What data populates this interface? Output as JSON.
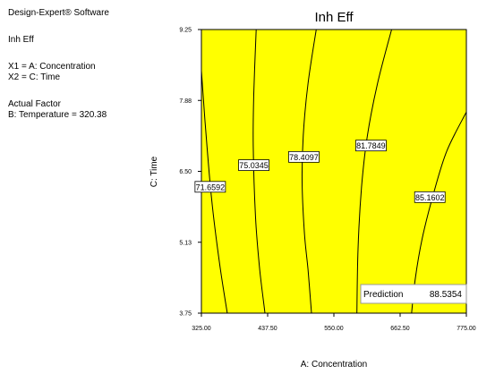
{
  "software": {
    "title": "Design-Expert® Software",
    "response": "Inh Eff",
    "factor_x1": "X1 = A: Concentration",
    "factor_x2": "X2 = C: Time",
    "actual_factor_heading": "Actual Factor",
    "actual_factor_value": "B: Temperature = 320.38"
  },
  "colors": {
    "plot_fill": "#ffff00",
    "contour": "#000000"
  },
  "chart_data": {
    "type": "contour",
    "title": "Inh Eff",
    "xlabel": "A: Concentration",
    "ylabel": "C: Time",
    "xlim": [
      325,
      775
    ],
    "ylim": [
      3.75,
      9.25
    ],
    "x_tick_labels": [
      "325.00",
      "437.50",
      "550.00",
      "662.50",
      "775.00"
    ],
    "y_tick_labels": [
      "3.75",
      "5.13",
      "6.50",
      "7.88",
      "9.25"
    ],
    "contours": [
      {
        "level": "71.6592",
        "points": [
          [
            325,
            8.45
          ],
          [
            331,
            7.5
          ],
          [
            342,
            6.0
          ],
          [
            356,
            4.7
          ],
          [
            369,
            3.75
          ]
        ],
        "label_at": [
          340,
          6.2
        ]
      },
      {
        "level": "75.0345",
        "points": [
          [
            418,
            9.25
          ],
          [
            414,
            8.0
          ],
          [
            413,
            7.0
          ],
          [
            417,
            5.6
          ],
          [
            424,
            4.6
          ],
          [
            433,
            3.75
          ]
        ],
        "label_at": [
          414,
          6.62
        ]
      },
      {
        "level": "78.4097",
        "points": [
          [
            520,
            9.25
          ],
          [
            506,
            8.2
          ],
          [
            498,
            7.2
          ],
          [
            496,
            6.3
          ],
          [
            500,
            5.3
          ],
          [
            506,
            4.6
          ],
          [
            512,
            3.75
          ]
        ],
        "label_at": [
          499,
          6.78
        ]
      },
      {
        "level": "81.7849",
        "points": [
          [
            648,
            9.25
          ],
          [
            624,
            8.2
          ],
          [
            607,
            7.2
          ],
          [
            597,
            6.2
          ],
          [
            591,
            5.0
          ],
          [
            589,
            3.75
          ]
        ],
        "label_at": [
          613,
          7.0
        ]
      },
      {
        "level": "85.1602",
        "points": [
          [
            775,
            7.65
          ],
          [
            742,
            6.9
          ],
          [
            720,
            6.1
          ],
          [
            700,
            5.2
          ],
          [
            688,
            4.4
          ],
          [
            682,
            3.75
          ]
        ],
        "label_at": [
          713,
          6.0
        ]
      }
    ],
    "prediction": {
      "label": "Prediction",
      "value": "88.5354"
    }
  }
}
